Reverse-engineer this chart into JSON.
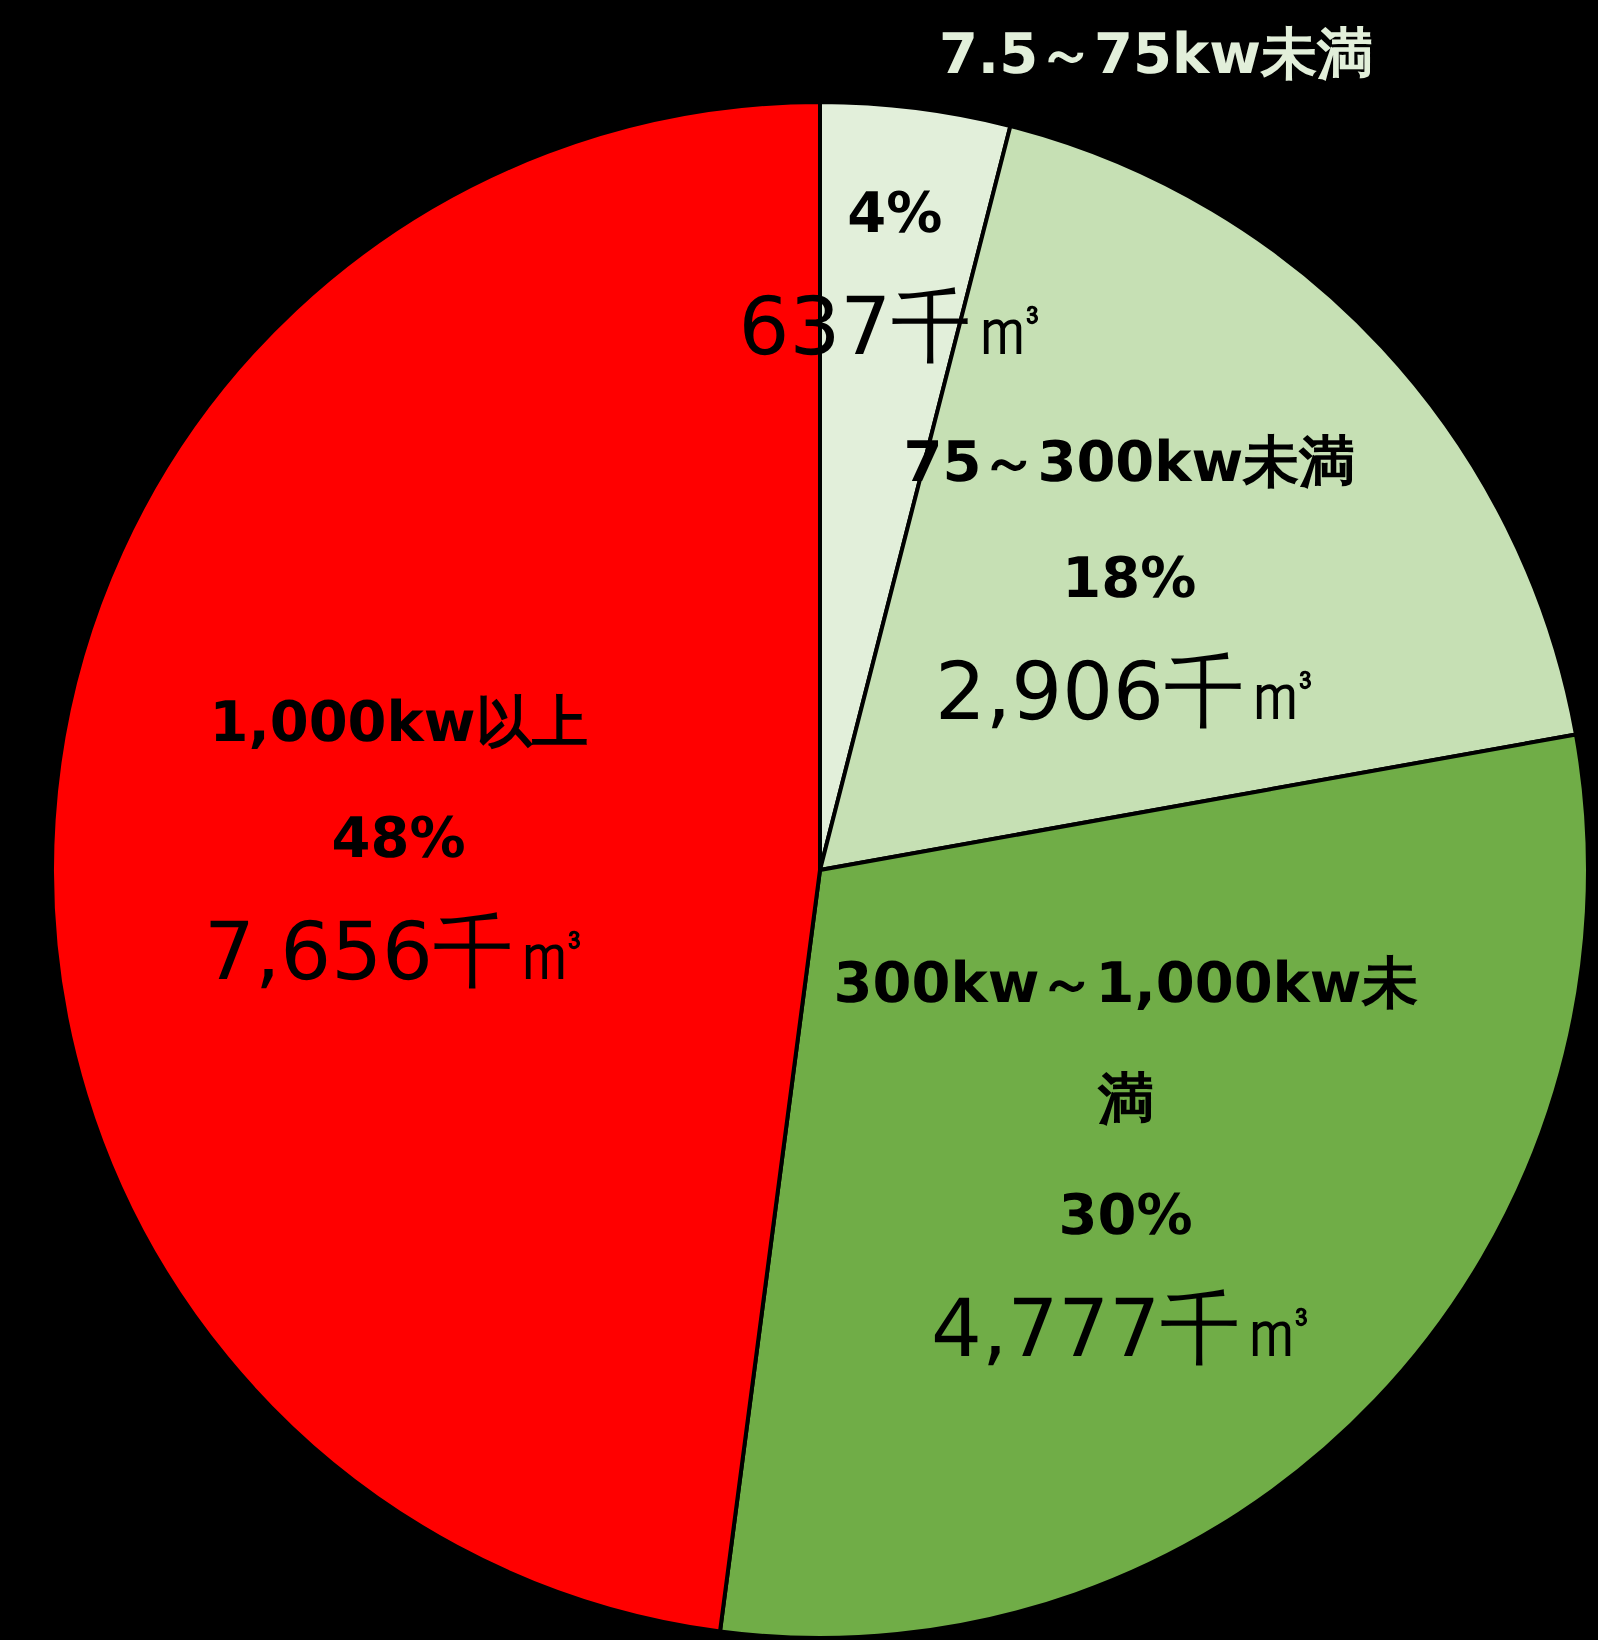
{
  "chart_data": {
    "type": "pie",
    "categories": [
      "7.5～75kw未満",
      "75～300kw未満",
      "300kw～1,000kw未満",
      "1,000kw以上"
    ],
    "values": [
      637,
      2906,
      4777,
      7656
    ],
    "colors": [
      "#e2efda",
      "#c6e0b4",
      "#70ad47",
      "#ff0000"
    ],
    "value_labels": [
      "4%\n637千㎥",
      "18%\n2,906千㎥",
      "30%\n4,777千㎥",
      "48%\n7,656千㎥"
    ],
    "legend": false
  }
}
